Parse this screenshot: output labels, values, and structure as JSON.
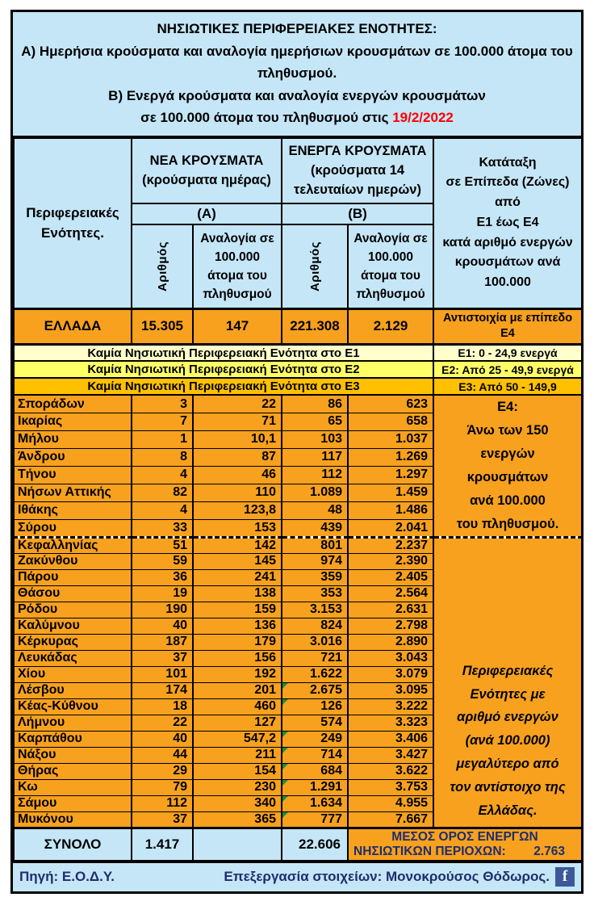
{
  "colors": {
    "light_blue": "#C5E6F7",
    "orange": "#F7A11E",
    "zone_e1": "#FFFFCC",
    "zone_e2": "#FFFF66",
    "zone_e3": "#FFC000",
    "navy_text": "#1F2D6E",
    "date_red": "#FF0000",
    "facebook_blue": "#3B5998",
    "flag_green": "#1E8E3E"
  },
  "title": {
    "heading": "ΝΗΣΙΩΤΙΚΕΣ ΠΕΡΙΦΕΡΕΙΑΚΕΣ ΕΝΟΤΗΤΕΣ:",
    "line_a": "Α) Ημερήσια κρούσματα και αναλογία ημερήσιων κρουσμάτων σε 100.000 άτομα του πληθυσμού.",
    "line_b": "Β) Ενεργά κρούσματα και αναλογία ενεργών κρουσμάτων",
    "line_b2": "σε 100.000 άτομα του πληθυσμού στις",
    "date": "19/2/2022"
  },
  "header": {
    "region_col": "Περιφερειακές\nΕνότητες.",
    "new_group": "ΝΕΑ ΚΡΟΥΣΜΑΤΑ (κρούσματα ημέρας)",
    "new_group_tag": "(Α)",
    "active_group": "ΕΝΕΡΓΑ ΚΡΟΥΣΜΑΤΑ (κρούσματα 14 τελευταίων ημερών)",
    "active_group_tag": "(Β)",
    "count_col": "Αριθμός",
    "ratio_col": "Αναλογία σε 100.000 άτομα του πληθυσμού",
    "zones_col": "Κατάταξη\nσε Επίπεδα (Ζώνες)\nαπό\nΕ1 έως Ε4\nκατά αριθμό ενεργών\nκρουσμάτων ανά\n100.000"
  },
  "greece": {
    "name": "ΕΛΛΑΔΑ",
    "new_cases": "15.305",
    "new_ratio": "147",
    "active_cases": "221.308",
    "active_ratio": "2.129",
    "zone": "Αντιστοιχία με επίπεδο\nΕ4"
  },
  "zones": [
    {
      "message": "Καμία Νησιωτική Περιφερειακή Ενότητα στο Ε1",
      "range": "Ε1: 0 - 24,9 ενεργά",
      "color": "#FFFFCC"
    },
    {
      "message": "Καμία Νησιωτική Περιφερειακή Ενότητα στο Ε2",
      "range": "Ε2: Από 25 - 49,9 ενεργά",
      "color": "#FFFF66"
    },
    {
      "message": "Καμία Νησιωτική Περιφερειακή Ενότητα στο Ε3",
      "range": "Ε3: Από 50 - 149,9",
      "color": "#FFC000"
    }
  ],
  "islands": {
    "e4_note": "Ε4:\nΆνω των 150\nενεργών\nκρουσμάτων\nανά 100.000\nτου πληθυσμού.",
    "comparison_note": "Περιφερειακές\nΕνότητες με\nαριθμό ενεργών\n(ανά 100.000)\nμεγαλύτερο από\nτον αντίστοιχο της\nΕλλάδας.",
    "rows": [
      {
        "name": "Σποράδων",
        "new_cases": "3",
        "new_ratio": "22",
        "active_cases": "86",
        "active_ratio": "623",
        "marked": false
      },
      {
        "name": "Ικαρίας",
        "new_cases": "7",
        "new_ratio": "71",
        "active_cases": "65",
        "active_ratio": "658",
        "marked": false
      },
      {
        "name": "Μήλου",
        "new_cases": "1",
        "new_ratio": "10,1",
        "active_cases": "103",
        "active_ratio": "1.037",
        "marked": false
      },
      {
        "name": "Άνδρου",
        "new_cases": "8",
        "new_ratio": "87",
        "active_cases": "117",
        "active_ratio": "1.269",
        "marked": false
      },
      {
        "name": "Τήνου",
        "new_cases": "4",
        "new_ratio": "46",
        "active_cases": "112",
        "active_ratio": "1.297",
        "marked": false
      },
      {
        "name": "Νήσων Αττικής",
        "new_cases": "82",
        "new_ratio": "110",
        "active_cases": "1.089",
        "active_ratio": "1.459",
        "marked": false
      },
      {
        "name": "Ιθάκης",
        "new_cases": "4",
        "new_ratio": "123,8",
        "active_cases": "48",
        "active_ratio": "1.486",
        "marked": false
      },
      {
        "name": "Σύρου",
        "new_cases": "33",
        "new_ratio": "153",
        "active_cases": "439",
        "active_ratio": "2.041",
        "marked": false
      },
      {
        "name": "Κεφαλληνίας",
        "new_cases": "51",
        "new_ratio": "142",
        "active_cases": "801",
        "active_ratio": "2.237",
        "marked": false
      },
      {
        "name": "Ζακύνθου",
        "new_cases": "59",
        "new_ratio": "145",
        "active_cases": "974",
        "active_ratio": "2.390",
        "marked": false
      },
      {
        "name": "Πάρου",
        "new_cases": "36",
        "new_ratio": "241",
        "active_cases": "359",
        "active_ratio": "2.405",
        "marked": false
      },
      {
        "name": "Θάσου",
        "new_cases": "19",
        "new_ratio": "138",
        "active_cases": "353",
        "active_ratio": "2.564",
        "marked": false
      },
      {
        "name": "Ρόδου",
        "new_cases": "190",
        "new_ratio": "159",
        "active_cases": "3.153",
        "active_ratio": "2.631",
        "marked": false
      },
      {
        "name": "Καλύμνου",
        "new_cases": "40",
        "new_ratio": "136",
        "active_cases": "824",
        "active_ratio": "2.798",
        "marked": false
      },
      {
        "name": "Κέρκυρας",
        "new_cases": "187",
        "new_ratio": "179",
        "active_cases": "3.016",
        "active_ratio": "2.890",
        "marked": false
      },
      {
        "name": "Λευκάδας",
        "new_cases": "37",
        "new_ratio": "156",
        "active_cases": "721",
        "active_ratio": "3.043",
        "marked": false
      },
      {
        "name": "Χίου",
        "new_cases": "101",
        "new_ratio": "192",
        "active_cases": "1.622",
        "active_ratio": "3.079",
        "marked": false
      },
      {
        "name": "Λέσβου",
        "new_cases": "174",
        "new_ratio": "201",
        "active_cases": "2.675",
        "active_ratio": "3.095",
        "marked": true
      },
      {
        "name": "Κέας-Κύθνου",
        "new_cases": "18",
        "new_ratio": "460",
        "active_cases": "126",
        "active_ratio": "3.222",
        "marked": true
      },
      {
        "name": "Λήμνου",
        "new_cases": "22",
        "new_ratio": "127",
        "active_cases": "574",
        "active_ratio": "3.323",
        "marked": false
      },
      {
        "name": "Καρπάθου",
        "new_cases": "40",
        "new_ratio": "547,2",
        "active_cases": "249",
        "active_ratio": "3.406",
        "marked": true
      },
      {
        "name": "Νάξου",
        "new_cases": "44",
        "new_ratio": "211",
        "active_cases": "714",
        "active_ratio": "3.427",
        "marked": true
      },
      {
        "name": "Θήρας",
        "new_cases": "29",
        "new_ratio": "154",
        "active_cases": "684",
        "active_ratio": "3.622",
        "marked": true
      },
      {
        "name": "Κω",
        "new_cases": "79",
        "new_ratio": "230",
        "active_cases": "1.291",
        "active_ratio": "3.753",
        "marked": true
      },
      {
        "name": "Σάμου",
        "new_cases": "112",
        "new_ratio": "340",
        "active_cases": "1.634",
        "active_ratio": "4.955",
        "marked": true
      },
      {
        "name": "Μυκόνου",
        "new_cases": "37",
        "new_ratio": "365",
        "active_cases": "777",
        "active_ratio": "7.667",
        "marked": true
      }
    ]
  },
  "totals": {
    "label": "ΣΥΝΟΛΟ",
    "new_cases": "1.417",
    "active_cases": "22.606",
    "avg_line1": "ΜΕΣΟΣ ΟΡΟΣ ΕΝΕΡΓΩΝ",
    "avg_line2": "ΝΗΣΙΩΤΙΚΩΝ ΠΕΡΙΟΧΩΝ:",
    "avg_value": "2.763"
  },
  "footer": {
    "source": "Πηγή: Ε.Ο.Δ.Υ.",
    "credit": "Επεξεργασία στοιχείων: Μονοκρούσος Θόδωρος.",
    "facebook_icon": "f"
  },
  "chart_data": {
    "type": "table",
    "title": "ΝΗΣΙΩΤΙΚΕΣ ΠΕΡΙΦΕΡΕΙΑΚΕΣ ΕΝΟΤΗΤΕΣ — Ημερήσια κρούσματα και ενεργά κρούσματα ανά 100.000 πληθυσμού στις 19/2/2022",
    "columns": [
      "Περιφερειακές Ενότητες",
      "ΝΕΑ ΚΡΟΥΣΜΑΤΑ (Α) — Αριθμός",
      "ΝΕΑ ΚΡΟΥΣΜΑΤΑ (Α) — Αναλογία σε 100.000 άτομα του πληθυσμού",
      "ΕΝΕΡΓΑ ΚΡΟΥΣΜΑΤΑ (Β) — Αριθμός",
      "ΕΝΕΡΓΑ ΚΡΟΥΣΜΑΤΑ (Β) — Αναλογία σε 100.000 άτομα του πληθυσμού",
      "Κατάταξη σε Επίπεδα (Ζώνες)"
    ],
    "greece_row": [
      "ΕΛΛΑΔΑ",
      "15.305",
      "147",
      "221.308",
      "2.129",
      "Αντιστοιχία με επίπεδο Ε4"
    ],
    "rows": [
      [
        "Σποράδων",
        "3",
        "22",
        "86",
        "623"
      ],
      [
        "Ικαρίας",
        "7",
        "71",
        "65",
        "658"
      ],
      [
        "Μήλου",
        "1",
        "10,1",
        "103",
        "1.037"
      ],
      [
        "Άνδρου",
        "8",
        "87",
        "117",
        "1.269"
      ],
      [
        "Τήνου",
        "4",
        "46",
        "112",
        "1.297"
      ],
      [
        "Νήσων Αττικής",
        "82",
        "110",
        "1.089",
        "1.459"
      ],
      [
        "Ιθάκης",
        "4",
        "123,8",
        "48",
        "1.486"
      ],
      [
        "Σύρου",
        "33",
        "153",
        "439",
        "2.041"
      ],
      [
        "Κεφαλληνίας",
        "51",
        "142",
        "801",
        "2.237"
      ],
      [
        "Ζακύνθου",
        "59",
        "145",
        "974",
        "2.390"
      ],
      [
        "Πάρου",
        "36",
        "241",
        "359",
        "2.405"
      ],
      [
        "Θάσου",
        "19",
        "138",
        "353",
        "2.564"
      ],
      [
        "Ρόδου",
        "190",
        "159",
        "3.153",
        "2.631"
      ],
      [
        "Καλύμνου",
        "40",
        "136",
        "824",
        "2.798"
      ],
      [
        "Κέρκυρας",
        "187",
        "179",
        "3.016",
        "2.890"
      ],
      [
        "Λευκάδας",
        "37",
        "156",
        "721",
        "3.043"
      ],
      [
        "Χίου",
        "101",
        "192",
        "1.622",
        "3.079"
      ],
      [
        "Λέσβου",
        "174",
        "201",
        "2.675",
        "3.095"
      ],
      [
        "Κέας-Κύθνου",
        "18",
        "460",
        "126",
        "3.222"
      ],
      [
        "Λήμνου",
        "22",
        "127",
        "574",
        "3.323"
      ],
      [
        "Καρπάθου",
        "40",
        "547,2",
        "249",
        "3.406"
      ],
      [
        "Νάξου",
        "44",
        "211",
        "714",
        "3.427"
      ],
      [
        "Θήρας",
        "29",
        "154",
        "684",
        "3.622"
      ],
      [
        "Κω",
        "79",
        "230",
        "1.291",
        "3.753"
      ],
      [
        "Σάμου",
        "112",
        "340",
        "1.634",
        "4.955"
      ],
      [
        "Μυκόνου",
        "37",
        "365",
        "777",
        "7.667"
      ]
    ],
    "totals_row": [
      "ΣΥΝΟΛΟ",
      "1.417",
      "",
      "22.606",
      ""
    ],
    "islands_active_average": "2.763",
    "zone_definitions": [
      "Ε1: 0 - 24,9 ενεργά",
      "Ε2: Από 25 - 49,9 ενεργά",
      "Ε3: Από 50 - 149,9",
      "Ε4: Άνω των 150 ενεργών κρουσμάτων ανά 100.000 του πληθυσμού."
    ]
  }
}
